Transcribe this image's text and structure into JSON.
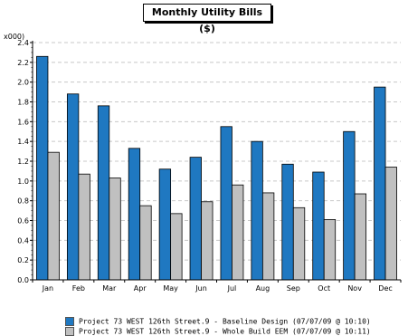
{
  "chart_data": {
    "type": "bar",
    "title": "Monthly Utility Bills ($)",
    "y_unit": "x000)",
    "categories": [
      "Jan",
      "Feb",
      "Mar",
      "Apr",
      "May",
      "Jun",
      "Jul",
      "Aug",
      "Sep",
      "Oct",
      "Nov",
      "Dec"
    ],
    "series": [
      {
        "name": "Project 73 WEST 126th Street.9 - Baseline Design  (07/07/09 @ 10:10)",
        "color": "#1f78c1",
        "values": [
          2.26,
          1.88,
          1.76,
          1.33,
          1.12,
          1.24,
          1.55,
          1.4,
          1.17,
          1.09,
          1.5,
          1.95
        ]
      },
      {
        "name": "Project 73 WEST 126th Street.9 - Whole Build EEM  (07/07/09 @ 10:11)",
        "color": "#c0c0c0",
        "values": [
          1.29,
          1.07,
          1.03,
          0.75,
          0.67,
          0.79,
          0.96,
          0.88,
          0.73,
          0.61,
          0.87,
          1.14
        ]
      }
    ],
    "ylim": [
      0,
      2.4
    ],
    "yticks": [
      "0.0",
      "0.2",
      "0.4",
      "0.6",
      "0.8",
      "1.0",
      "1.2",
      "1.4",
      "1.6",
      "1.8",
      "2.0",
      "2.2",
      "2.4"
    ],
    "grid": true,
    "legend_position": "bottom"
  }
}
